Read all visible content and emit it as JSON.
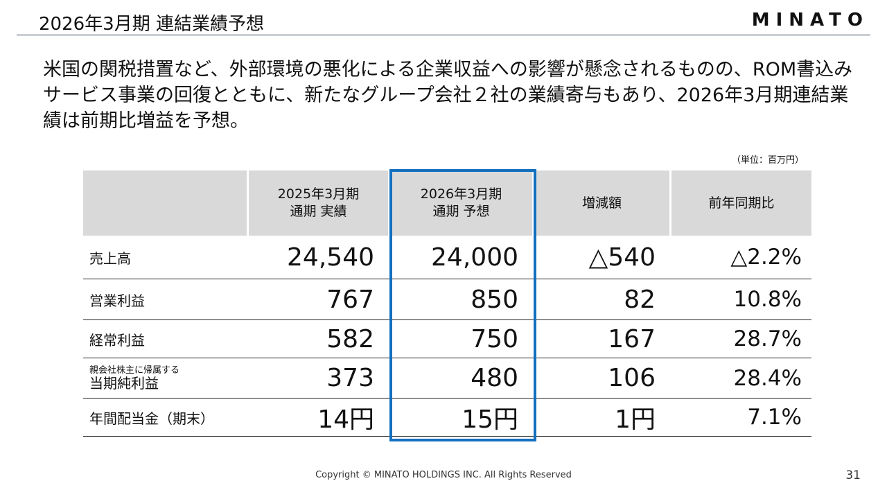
{
  "header": {
    "title": "2026年3月期 連結業績予想",
    "logo_text": "MINATO"
  },
  "lead_text": "米国の関税措置など、外部環境の悪化による企業収益への影響が懸念されるものの、ROM書込みサービス事業の回復とともに、新たなグループ会社２社の業績寄与もあり、2026年3月期連結業績は前期比増益を予想。",
  "unit_note": "（単位：百万円）",
  "table": {
    "headers": [
      {
        "line1": "",
        "line2": ""
      },
      {
        "line1": "2025年3月期",
        "line2": "通期 実績"
      },
      {
        "line1": "2026年3月期",
        "line2": "通期 予想"
      },
      {
        "line1": "増減額",
        "line2": ""
      },
      {
        "line1": "前年同期比",
        "line2": ""
      }
    ],
    "rows": [
      {
        "label_small": "",
        "label": "売上高",
        "actual": "24,540",
        "forecast": "24,000",
        "change": "△540",
        "yoy": "△2.2%"
      },
      {
        "label_small": "",
        "label": "営業利益",
        "actual": "767",
        "forecast": "850",
        "change": "82",
        "yoy": "10.8%"
      },
      {
        "label_small": "",
        "label": "経常利益",
        "actual": "582",
        "forecast": "750",
        "change": "167",
        "yoy": "28.7%"
      },
      {
        "label_small": "親会社株主に帰属する",
        "label": "当期純利益",
        "actual": "373",
        "forecast": "480",
        "change": "106",
        "yoy": "28.4%"
      },
      {
        "label_small": "",
        "label": "年間配当金（期末）",
        "actual": "14円",
        "forecast": "15円",
        "change": "1円",
        "yoy": "7.1%"
      }
    ]
  },
  "colors": {
    "accent_frame": "#1470bf",
    "header_bg": "#d9d9d9",
    "title_rule": "#2a3a4f"
  },
  "footer": {
    "copyright": "Copyright © MINATO HOLDINGS INC. All Rights Reserved",
    "page_number": "31"
  }
}
